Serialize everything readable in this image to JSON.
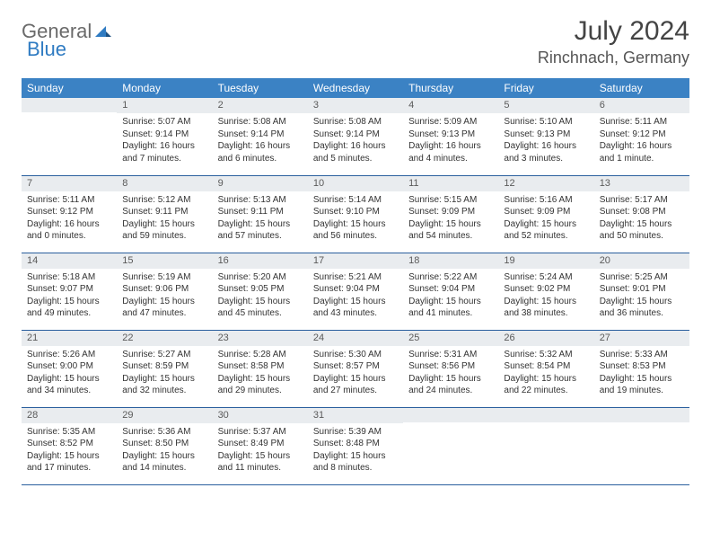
{
  "brand": {
    "part1": "General",
    "part2": "Blue"
  },
  "title": "July 2024",
  "location": "Rinchnach, Germany",
  "colors": {
    "header_bg": "#3b82c4",
    "header_text": "#ffffff",
    "row_border": "#2a5f9e",
    "daynum_bg": "#e9ecef",
    "accent": "#2f7bc2"
  },
  "day_labels": [
    "Sunday",
    "Monday",
    "Tuesday",
    "Wednesday",
    "Thursday",
    "Friday",
    "Saturday"
  ],
  "weeks": [
    [
      {
        "n": "",
        "sr": "",
        "ss": "",
        "dl": ""
      },
      {
        "n": "1",
        "sr": "Sunrise: 5:07 AM",
        "ss": "Sunset: 9:14 PM",
        "dl": "Daylight: 16 hours and 7 minutes."
      },
      {
        "n": "2",
        "sr": "Sunrise: 5:08 AM",
        "ss": "Sunset: 9:14 PM",
        "dl": "Daylight: 16 hours and 6 minutes."
      },
      {
        "n": "3",
        "sr": "Sunrise: 5:08 AM",
        "ss": "Sunset: 9:14 PM",
        "dl": "Daylight: 16 hours and 5 minutes."
      },
      {
        "n": "4",
        "sr": "Sunrise: 5:09 AM",
        "ss": "Sunset: 9:13 PM",
        "dl": "Daylight: 16 hours and 4 minutes."
      },
      {
        "n": "5",
        "sr": "Sunrise: 5:10 AM",
        "ss": "Sunset: 9:13 PM",
        "dl": "Daylight: 16 hours and 3 minutes."
      },
      {
        "n": "6",
        "sr": "Sunrise: 5:11 AM",
        "ss": "Sunset: 9:12 PM",
        "dl": "Daylight: 16 hours and 1 minute."
      }
    ],
    [
      {
        "n": "7",
        "sr": "Sunrise: 5:11 AM",
        "ss": "Sunset: 9:12 PM",
        "dl": "Daylight: 16 hours and 0 minutes."
      },
      {
        "n": "8",
        "sr": "Sunrise: 5:12 AM",
        "ss": "Sunset: 9:11 PM",
        "dl": "Daylight: 15 hours and 59 minutes."
      },
      {
        "n": "9",
        "sr": "Sunrise: 5:13 AM",
        "ss": "Sunset: 9:11 PM",
        "dl": "Daylight: 15 hours and 57 minutes."
      },
      {
        "n": "10",
        "sr": "Sunrise: 5:14 AM",
        "ss": "Sunset: 9:10 PM",
        "dl": "Daylight: 15 hours and 56 minutes."
      },
      {
        "n": "11",
        "sr": "Sunrise: 5:15 AM",
        "ss": "Sunset: 9:09 PM",
        "dl": "Daylight: 15 hours and 54 minutes."
      },
      {
        "n": "12",
        "sr": "Sunrise: 5:16 AM",
        "ss": "Sunset: 9:09 PM",
        "dl": "Daylight: 15 hours and 52 minutes."
      },
      {
        "n": "13",
        "sr": "Sunrise: 5:17 AM",
        "ss": "Sunset: 9:08 PM",
        "dl": "Daylight: 15 hours and 50 minutes."
      }
    ],
    [
      {
        "n": "14",
        "sr": "Sunrise: 5:18 AM",
        "ss": "Sunset: 9:07 PM",
        "dl": "Daylight: 15 hours and 49 minutes."
      },
      {
        "n": "15",
        "sr": "Sunrise: 5:19 AM",
        "ss": "Sunset: 9:06 PM",
        "dl": "Daylight: 15 hours and 47 minutes."
      },
      {
        "n": "16",
        "sr": "Sunrise: 5:20 AM",
        "ss": "Sunset: 9:05 PM",
        "dl": "Daylight: 15 hours and 45 minutes."
      },
      {
        "n": "17",
        "sr": "Sunrise: 5:21 AM",
        "ss": "Sunset: 9:04 PM",
        "dl": "Daylight: 15 hours and 43 minutes."
      },
      {
        "n": "18",
        "sr": "Sunrise: 5:22 AM",
        "ss": "Sunset: 9:04 PM",
        "dl": "Daylight: 15 hours and 41 minutes."
      },
      {
        "n": "19",
        "sr": "Sunrise: 5:24 AM",
        "ss": "Sunset: 9:02 PM",
        "dl": "Daylight: 15 hours and 38 minutes."
      },
      {
        "n": "20",
        "sr": "Sunrise: 5:25 AM",
        "ss": "Sunset: 9:01 PM",
        "dl": "Daylight: 15 hours and 36 minutes."
      }
    ],
    [
      {
        "n": "21",
        "sr": "Sunrise: 5:26 AM",
        "ss": "Sunset: 9:00 PM",
        "dl": "Daylight: 15 hours and 34 minutes."
      },
      {
        "n": "22",
        "sr": "Sunrise: 5:27 AM",
        "ss": "Sunset: 8:59 PM",
        "dl": "Daylight: 15 hours and 32 minutes."
      },
      {
        "n": "23",
        "sr": "Sunrise: 5:28 AM",
        "ss": "Sunset: 8:58 PM",
        "dl": "Daylight: 15 hours and 29 minutes."
      },
      {
        "n": "24",
        "sr": "Sunrise: 5:30 AM",
        "ss": "Sunset: 8:57 PM",
        "dl": "Daylight: 15 hours and 27 minutes."
      },
      {
        "n": "25",
        "sr": "Sunrise: 5:31 AM",
        "ss": "Sunset: 8:56 PM",
        "dl": "Daylight: 15 hours and 24 minutes."
      },
      {
        "n": "26",
        "sr": "Sunrise: 5:32 AM",
        "ss": "Sunset: 8:54 PM",
        "dl": "Daylight: 15 hours and 22 minutes."
      },
      {
        "n": "27",
        "sr": "Sunrise: 5:33 AM",
        "ss": "Sunset: 8:53 PM",
        "dl": "Daylight: 15 hours and 19 minutes."
      }
    ],
    [
      {
        "n": "28",
        "sr": "Sunrise: 5:35 AM",
        "ss": "Sunset: 8:52 PM",
        "dl": "Daylight: 15 hours and 17 minutes."
      },
      {
        "n": "29",
        "sr": "Sunrise: 5:36 AM",
        "ss": "Sunset: 8:50 PM",
        "dl": "Daylight: 15 hours and 14 minutes."
      },
      {
        "n": "30",
        "sr": "Sunrise: 5:37 AM",
        "ss": "Sunset: 8:49 PM",
        "dl": "Daylight: 15 hours and 11 minutes."
      },
      {
        "n": "31",
        "sr": "Sunrise: 5:39 AM",
        "ss": "Sunset: 8:48 PM",
        "dl": "Daylight: 15 hours and 8 minutes."
      },
      {
        "n": "",
        "sr": "",
        "ss": "",
        "dl": ""
      },
      {
        "n": "",
        "sr": "",
        "ss": "",
        "dl": ""
      },
      {
        "n": "",
        "sr": "",
        "ss": "",
        "dl": ""
      }
    ]
  ]
}
